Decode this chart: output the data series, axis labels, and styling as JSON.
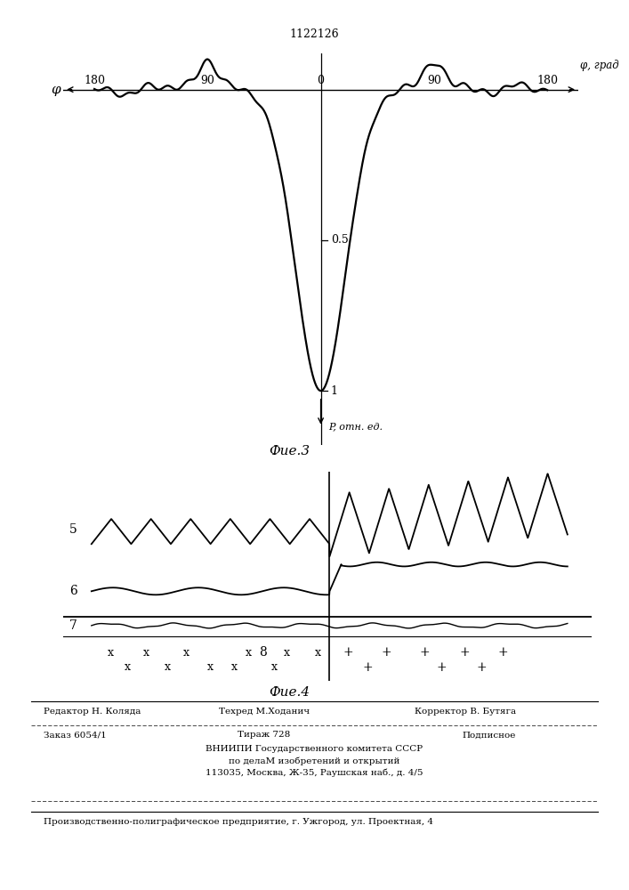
{
  "patent_number": "1122126",
  "fig3_label": "Фие.3",
  "fig4_label": "Фие.4",
  "phi_label_left": "φ",
  "phi_label_right": "φ, град",
  "P_label": "P, отн. ед.",
  "P_tick_05": "0.5",
  "P_tick_1": "1",
  "line5_label": "5",
  "line6_label": "6",
  "line7_label": "7",
  "line8_label": "8",
  "bg_color": "#ffffff",
  "line_color": "#000000",
  "footer_editor": "Редактор Н. Коляда",
  "footer_tech": "Техред М.Ходанич",
  "footer_corr": "Корректор В. Бутяга",
  "footer_order": "Заказ 6054/1",
  "footer_tir": "Тираж 728",
  "footer_sub": "Подписное",
  "footer_org1": "ВНИИПИ Государственного комитета СССР",
  "footer_org2": "по делаМ изобретений и открытий",
  "footer_org3": "113035, Москва, Ж-35, Раушская наб., д. 4/5",
  "footer_prod": "Производственно-полиграфическое предприятие, г. Ужгород, ул. Проектная, 4"
}
